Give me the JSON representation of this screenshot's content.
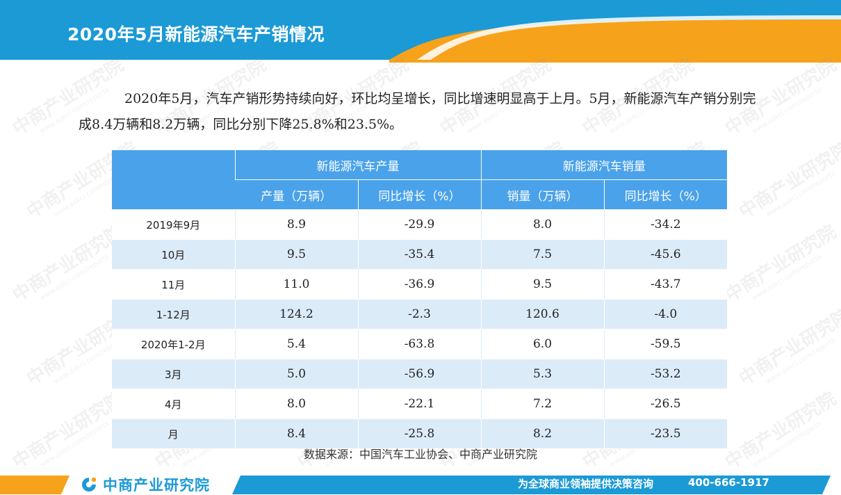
{
  "header": {
    "title": "2020年5月新能源汽车产销情况",
    "colors": {
      "blue": "#1b9ad6",
      "orange": "#f7a21b"
    }
  },
  "intro": {
    "text": "2020年5月，汽车产销形势持续向好，环比均呈增长，同比增速明显高于上月。5月，新能源汽车产销分别完成8.4万辆和8.2万辆，同比分别下降25.8%和23.5%。"
  },
  "table": {
    "group_headers": [
      "新能源汽车产量",
      "新能源汽车销量"
    ],
    "sub_headers": [
      "产量（万辆）",
      "同比增长（%）",
      "销量（万辆）",
      "同比增长（%）"
    ],
    "rows": [
      {
        "period": "2019年9月",
        "prod": "8.9",
        "prod_yoy": "-29.9",
        "sales": "8.0",
        "sales_yoy": "-34.2"
      },
      {
        "period": "10月",
        "prod": "9.5",
        "prod_yoy": "-35.4",
        "sales": "7.5",
        "sales_yoy": "-45.6"
      },
      {
        "period": "11月",
        "prod": "11.0",
        "prod_yoy": "-36.9",
        "sales": "9.5",
        "sales_yoy": "-43.7"
      },
      {
        "period": "1-12月",
        "prod": "124.2",
        "prod_yoy": "-2.3",
        "sales": "120.6",
        "sales_yoy": "-4.0"
      },
      {
        "period": "2020年1-2月",
        "prod": "5.4",
        "prod_yoy": "-63.8",
        "sales": "6.0",
        "sales_yoy": "-59.5"
      },
      {
        "period": "3月",
        "prod": "5.0",
        "prod_yoy": "-56.9",
        "sales": "5.3",
        "sales_yoy": "-53.2"
      },
      {
        "period": "4月",
        "prod": "8.0",
        "prod_yoy": "-22.1",
        "sales": "7.2",
        "sales_yoy": "-26.5"
      },
      {
        "period": "月",
        "prod": "8.4",
        "prod_yoy": "-25.8",
        "sales": "8.2",
        "sales_yoy": "-23.5"
      }
    ],
    "colors": {
      "header": "#4aa2ea",
      "stripe": "#dcebf8"
    }
  },
  "source": "数据来源：中国汽车工业协会、中商产业研究院",
  "watermark": {
    "text": "中商产业研究院",
    "url": "www.askci.com/reports"
  },
  "footer": {
    "logo_text": "中商产业研究院",
    "slogan": "为全球商业领袖提供决策咨询",
    "phone": "400-666-1917",
    "colors": {
      "blue": "#1b9ad6",
      "orange": "#f7a21b"
    },
    "icons": [
      "askci-logo-icon"
    ]
  }
}
